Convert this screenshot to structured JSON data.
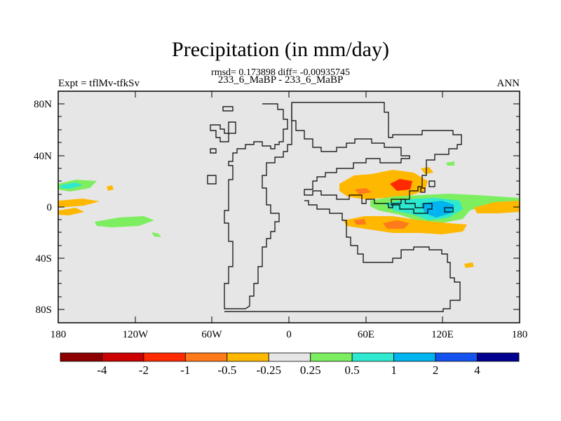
{
  "plot": {
    "title": "Precipitation (in mm/day)",
    "stats": "rmsd= 0.173898 diff= -0.00935745",
    "case_label": "233_6_MaBP - 233_6_MaBP",
    "expt_label": "Expt = tflMv-tfkSv",
    "season_label": "ANN"
  },
  "axes": {
    "y_ticks": [
      "80N",
      "40N",
      "0",
      "40S",
      "80S"
    ],
    "x_ticks": [
      "180",
      "120W",
      "60W",
      "0",
      "60E",
      "120E",
      "180"
    ]
  },
  "colorbar": {
    "colors": [
      "#8c0000",
      "#cc0000",
      "#ff2a00",
      "#ff7a1a",
      "#ffb800",
      "#e6e6e6",
      "#7dee5f",
      "#2ee8cf",
      "#00b4f0",
      "#1452f0",
      "#000090"
    ],
    "labels": [
      "-4",
      "-2",
      "-1",
      "-0.5",
      "-0.25",
      "0.25",
      "0.5",
      "1",
      "2",
      "4"
    ]
  },
  "colors": {
    "background_gray": "#e6e6e6",
    "land_outline": "#000000"
  }
}
